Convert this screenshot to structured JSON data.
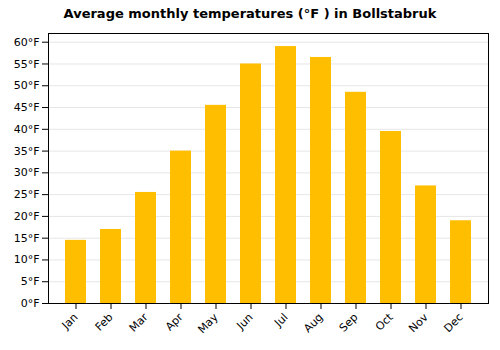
{
  "chart_data": {
    "type": "bar",
    "title": "Average monthly temperatures (°F ) in Bollstabruk",
    "categories": [
      "Jan",
      "Feb",
      "Mar",
      "Apr",
      "May",
      "Jun",
      "Jul",
      "Aug",
      "Sep",
      "Oct",
      "Nov",
      "Dec"
    ],
    "values": [
      14.5,
      17.0,
      25.5,
      35.0,
      45.5,
      55.0,
      59.0,
      56.5,
      48.5,
      39.5,
      27.0,
      19.0
    ],
    "color": "#FFBE00",
    "ylim": [
      0,
      62
    ],
    "yticks": [
      {
        "value": 0,
        "label": "0°F"
      },
      {
        "value": 5,
        "label": "5°F"
      },
      {
        "value": 10,
        "label": "10°F"
      },
      {
        "value": 15,
        "label": "15°F"
      },
      {
        "value": 20,
        "label": "20°F"
      },
      {
        "value": 25,
        "label": "25°F"
      },
      {
        "value": 30,
        "label": "30°F"
      },
      {
        "value": 35,
        "label": "35°F"
      },
      {
        "value": 40,
        "label": "40°F"
      },
      {
        "value": 45,
        "label": "45°F"
      },
      {
        "value": 50,
        "label": "50°F"
      },
      {
        "value": 55,
        "label": "55°F"
      },
      {
        "value": 60,
        "label": "60°F"
      }
    ],
    "grid": true
  }
}
